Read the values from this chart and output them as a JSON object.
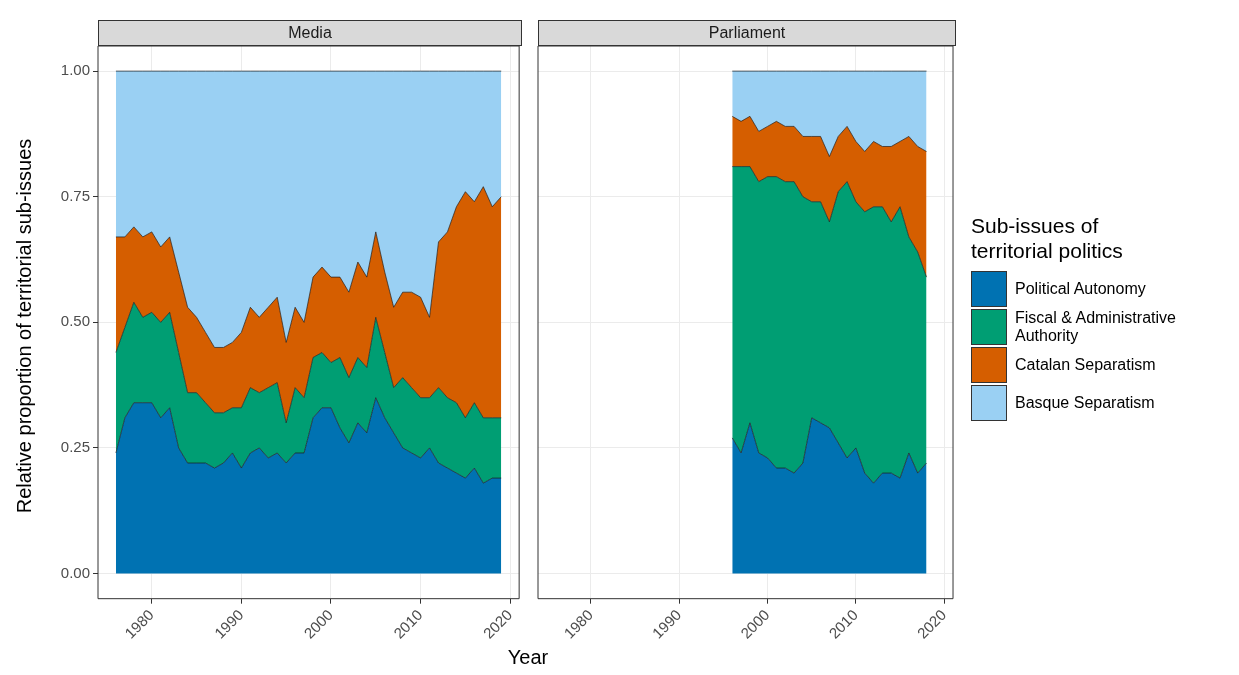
{
  "chart_data": [
    {
      "type": "area",
      "title": "Media",
      "xlabel": "Year",
      "ylabel": "Relative proportion of territorial sub-issues",
      "stacked": true,
      "grid": true,
      "legend": false,
      "xlim": [
        1974,
        2021
      ],
      "xticks": [
        1980,
        1990,
        2000,
        2010,
        2020
      ],
      "ylim": [
        -0.05,
        1.05
      ],
      "yticks": [
        {
          "value": 0,
          "label": "0.00"
        },
        {
          "value": 0.25,
          "label": "0.25"
        },
        {
          "value": 0.5,
          "label": "0.50"
        },
        {
          "value": 0.75,
          "label": "0.75"
        },
        {
          "value": 1,
          "label": "1.00"
        }
      ],
      "x": [
        1976,
        1977,
        1978,
        1979,
        1980,
        1981,
        1982,
        1983,
        1984,
        1985,
        1986,
        1987,
        1988,
        1989,
        1990,
        1991,
        1992,
        1993,
        1994,
        1995,
        1996,
        1997,
        1998,
        1999,
        2000,
        2001,
        2002,
        2003,
        2004,
        2005,
        2006,
        2007,
        2008,
        2009,
        2010,
        2011,
        2012,
        2013,
        2014,
        2015,
        2016,
        2017,
        2018,
        2019
      ],
      "series": [
        {
          "color": "#0072b2",
          "values": [
            0.24,
            0.31,
            0.34,
            0.34,
            0.34,
            0.31,
            0.33,
            0.25,
            0.22,
            0.22,
            0.22,
            0.21,
            0.22,
            0.24,
            0.21,
            0.24,
            0.25,
            0.23,
            0.24,
            0.22,
            0.24,
            0.24,
            0.31,
            0.33,
            0.33,
            0.29,
            0.26,
            0.3,
            0.28,
            0.35,
            0.31,
            0.28,
            0.25,
            0.24,
            0.23,
            0.25,
            0.22,
            0.21,
            0.2,
            0.19,
            0.21,
            0.18,
            0.19,
            0.19
          ]
        },
        {
          "color": "#009e73",
          "values": [
            0.2,
            0.18,
            0.2,
            0.17,
            0.18,
            0.19,
            0.19,
            0.19,
            0.14,
            0.14,
            0.12,
            0.11,
            0.1,
            0.09,
            0.12,
            0.13,
            0.11,
            0.14,
            0.14,
            0.08,
            0.13,
            0.11,
            0.12,
            0.11,
            0.09,
            0.14,
            0.13,
            0.13,
            0.13,
            0.16,
            0.13,
            0.09,
            0.14,
            0.13,
            0.12,
            0.1,
            0.15,
            0.14,
            0.14,
            0.12,
            0.13,
            0.13,
            0.12,
            0.12
          ]
        },
        {
          "color": "#d55e00",
          "values": [
            0.23,
            0.18,
            0.15,
            0.16,
            0.16,
            0.15,
            0.15,
            0.16,
            0.17,
            0.15,
            0.14,
            0.13,
            0.13,
            0.13,
            0.15,
            0.16,
            0.15,
            0.16,
            0.17,
            0.16,
            0.16,
            0.15,
            0.16,
            0.17,
            0.17,
            0.16,
            0.17,
            0.19,
            0.18,
            0.17,
            0.16,
            0.16,
            0.17,
            0.19,
            0.2,
            0.16,
            0.29,
            0.33,
            0.39,
            0.45,
            0.4,
            0.46,
            0.42,
            0.44
          ]
        },
        {
          "color": "#9ad0f3",
          "values": [
            0.33,
            0.33,
            0.31,
            0.33,
            0.32,
            0.35,
            0.33,
            0.4,
            0.47,
            0.49,
            0.52,
            0.55,
            0.55,
            0.54,
            0.52,
            0.47,
            0.49,
            0.47,
            0.45,
            0.54,
            0.47,
            0.5,
            0.41,
            0.39,
            0.41,
            0.41,
            0.44,
            0.38,
            0.41,
            0.32,
            0.4,
            0.47,
            0.44,
            0.44,
            0.45,
            0.49,
            0.34,
            0.32,
            0.27,
            0.24,
            0.26,
            0.23,
            0.27,
            0.25
          ]
        }
      ]
    },
    {
      "type": "area",
      "title": "Parliament",
      "legend_title": "Sub-issues of territorial politics",
      "stacked": true,
      "grid": true,
      "legend": "right",
      "tick_labels": "x",
      "xlim": [
        1974,
        2021
      ],
      "xticks": [
        1980,
        1990,
        2000,
        2010,
        2020
      ],
      "ylim": [
        -0.05,
        1.05
      ],
      "yticks": [
        0,
        0.25,
        0.5,
        0.75,
        1
      ],
      "x": [
        1996,
        1997,
        1998,
        1999,
        2000,
        2001,
        2002,
        2003,
        2004,
        2005,
        2006,
        2007,
        2008,
        2009,
        2010,
        2011,
        2012,
        2013,
        2014,
        2015,
        2016,
        2017,
        2018
      ],
      "series": [
        {
          "name": "Political Autonomy",
          "color": "#0072b2",
          "values": [
            0.27,
            0.24,
            0.3,
            0.24,
            0.23,
            0.21,
            0.21,
            0.2,
            0.22,
            0.31,
            0.3,
            0.29,
            0.26,
            0.23,
            0.25,
            0.2,
            0.18,
            0.2,
            0.2,
            0.19,
            0.24,
            0.2,
            0.22
          ]
        },
        {
          "name": "Fiscal & Administrative Authority",
          "color": "#009e73",
          "values": [
            0.54,
            0.57,
            0.51,
            0.54,
            0.56,
            0.58,
            0.57,
            0.58,
            0.53,
            0.43,
            0.44,
            0.41,
            0.5,
            0.55,
            0.49,
            0.52,
            0.55,
            0.53,
            0.5,
            0.54,
            0.43,
            0.44,
            0.37
          ]
        },
        {
          "name": "Catalan Separatism",
          "color": "#d55e00",
          "values": [
            0.1,
            0.09,
            0.1,
            0.1,
            0.1,
            0.11,
            0.11,
            0.11,
            0.12,
            0.13,
            0.13,
            0.13,
            0.11,
            0.11,
            0.12,
            0.12,
            0.13,
            0.12,
            0.15,
            0.13,
            0.2,
            0.21,
            0.25
          ]
        },
        {
          "name": "Basque Separatism",
          "color": "#9ad0f3",
          "values": [
            0.09,
            0.1,
            0.09,
            0.12,
            0.11,
            0.1,
            0.11,
            0.11,
            0.13,
            0.13,
            0.13,
            0.17,
            0.13,
            0.11,
            0.14,
            0.16,
            0.14,
            0.15,
            0.15,
            0.14,
            0.13,
            0.15,
            0.16
          ]
        }
      ]
    }
  ]
}
